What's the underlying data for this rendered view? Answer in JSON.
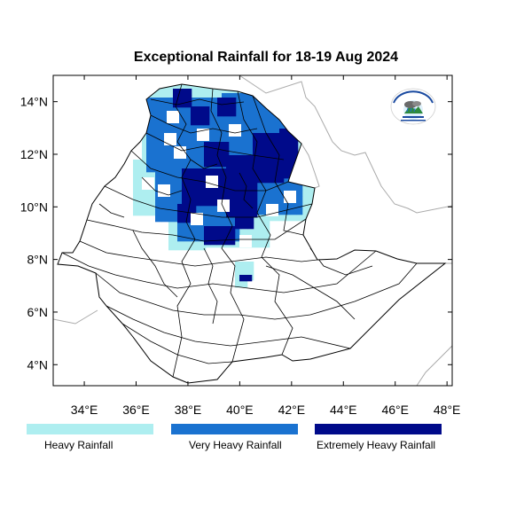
{
  "map": {
    "title": "Exceptional Rainfall for 18-19 Aug 2024",
    "lon_range": [
      32.8,
      48.2
    ],
    "lat_range": [
      3.2,
      15.0
    ],
    "x_ticks": [
      {
        "lon": 34,
        "label": "34°E"
      },
      {
        "lon": 36,
        "label": "36°E"
      },
      {
        "lon": 38,
        "label": "38°E"
      },
      {
        "lon": 40,
        "label": "40°E"
      },
      {
        "lon": 42,
        "label": "42°E"
      },
      {
        "lon": 44,
        "label": "44°E"
      },
      {
        "lon": 46,
        "label": "46°E"
      },
      {
        "lon": 48,
        "label": "48°E"
      }
    ],
    "y_ticks": [
      {
        "lat": 4,
        "label": "4°N"
      },
      {
        "lat": 6,
        "label": "6°N"
      },
      {
        "lat": 8,
        "label": "8°N"
      },
      {
        "lat": 10,
        "label": "10°N"
      },
      {
        "lat": 12,
        "label": "12°N"
      },
      {
        "lat": 14,
        "label": "14°N"
      }
    ],
    "border_color": "#000000",
    "neighbor_border_color": "#aaaaaa"
  },
  "legend": {
    "items": [
      {
        "label": "Heavy Rainfall",
        "color": "#aeeef0"
      },
      {
        "label": "Very Heavy Rainfall",
        "color": "#1a72d0"
      },
      {
        "label": "Extremely Heavy Rainfall",
        "color": "#000a8a"
      }
    ]
  },
  "logo": {
    "icon": "meteorology-agency-logo-icon"
  }
}
